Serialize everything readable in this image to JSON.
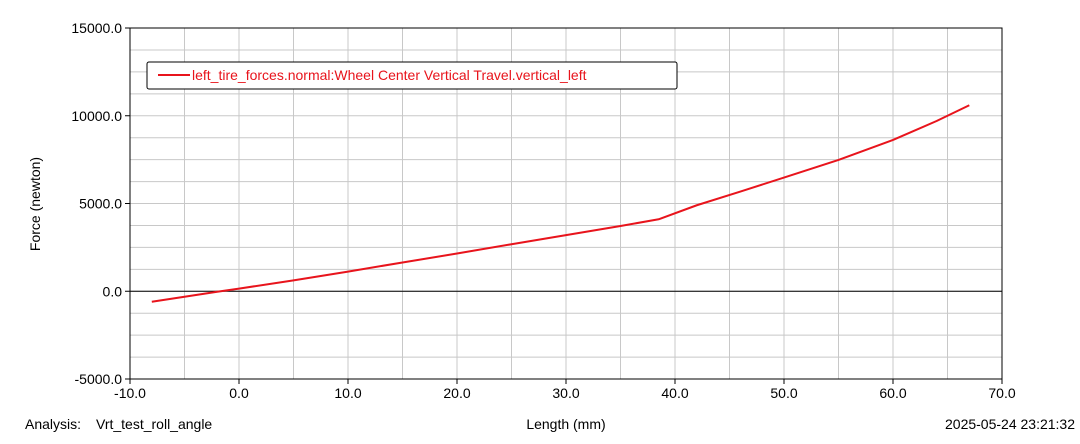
{
  "chart_data": {
    "type": "line",
    "title": "",
    "xlabel": "Length (mm)",
    "ylabel": "Force (newton)",
    "xlim": [
      -10,
      70
    ],
    "ylim": [
      -5000,
      15000
    ],
    "x_ticks": [
      "-10.0",
      "0.0",
      "10.0",
      "20.0",
      "30.0",
      "40.0",
      "50.0",
      "60.0",
      "70.0"
    ],
    "y_ticks": [
      "-5000.0",
      "0.0",
      "5000.0",
      "10000.0",
      "15000.0"
    ],
    "x_tick_values": [
      -10,
      0,
      10,
      20,
      30,
      40,
      50,
      60,
      70
    ],
    "y_tick_values": [
      -5000,
      0,
      5000,
      10000,
      15000
    ],
    "grid": true,
    "legend_position": "top-left",
    "series": [
      {
        "name": "left_tire_forces.normal:Wheel Center Vertical Travel.vertical_left",
        "color": "#e8141c",
        "x": [
          -8,
          -2,
          0,
          5,
          10,
          15,
          20,
          25,
          30,
          35,
          38.5,
          42,
          46,
          50,
          55,
          60,
          64,
          67
        ],
        "y": [
          -600,
          -30,
          150,
          620,
          1120,
          1640,
          2150,
          2680,
          3200,
          3720,
          4100,
          4900,
          5680,
          6480,
          7480,
          8620,
          9700,
          10600
        ]
      }
    ]
  },
  "footer": {
    "analysis_label": "Analysis:",
    "analysis_value": "Vrt_test_roll_angle",
    "timestamp": "2025-05-24 23:21:32"
  },
  "colors": {
    "axis": "#000000",
    "grid": "#c8c8c8",
    "zero_line": "#000000",
    "series": "#e8141c",
    "text": "#000000"
  }
}
